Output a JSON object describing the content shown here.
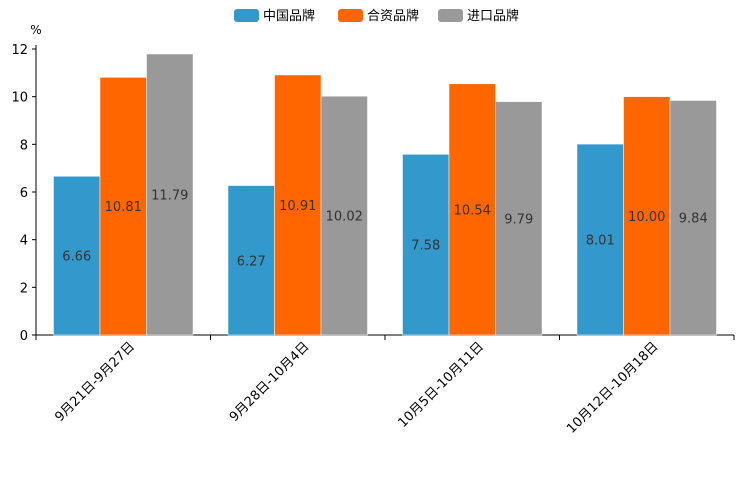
{
  "chart_data": {
    "type": "bar",
    "title": "",
    "xlabel": "",
    "ylabel": "%",
    "ylim": [
      0,
      12
    ],
    "yticks": [
      0,
      2,
      4,
      6,
      8,
      10,
      12
    ],
    "grid": false,
    "legend_position": "top-center",
    "categories": [
      "9月21日-9月27日",
      "9月28日-10月4日",
      "10月5日-10月11日",
      "10月12日-10月18日"
    ],
    "series": [
      {
        "name": "中国品牌",
        "color": "#3399CC",
        "values": [
          6.66,
          6.27,
          7.58,
          8.01
        ],
        "labels": [
          "6.66",
          "6.27",
          "7.58",
          "8.01"
        ]
      },
      {
        "name": "合资品牌",
        "color": "#FF6600",
        "values": [
          10.81,
          10.91,
          10.54,
          10.0
        ],
        "labels": [
          "10.81",
          "10.91",
          "10.54",
          "10.00"
        ]
      },
      {
        "name": "进口品牌",
        "color": "#999999",
        "values": [
          11.79,
          10.02,
          9.79,
          9.84
        ],
        "labels": [
          "11.79",
          "10.02",
          "9.79",
          "9.84"
        ]
      }
    ]
  }
}
